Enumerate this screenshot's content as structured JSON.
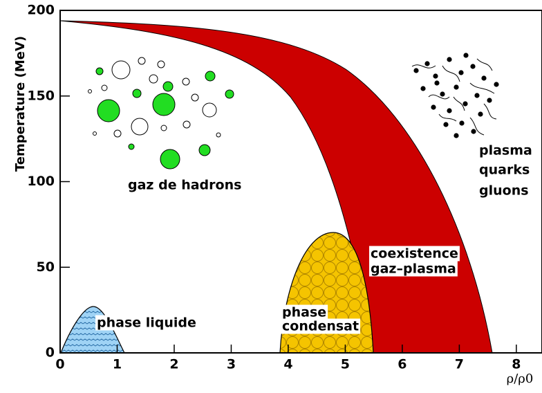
{
  "chart_data": {
    "type": "phase-diagram",
    "xlabel": "ρ/ρ0",
    "ylabel": "Temperature (MeV)",
    "xlim": [
      0,
      8.45
    ],
    "ylim": [
      0,
      200
    ],
    "xticks": [
      0,
      1,
      2,
      3,
      4,
      5,
      6,
      7,
      8
    ],
    "yticks": [
      0,
      50,
      100,
      150,
      200
    ],
    "annotations": [
      "gaz de hadrons",
      "phase liquide",
      "phase",
      "condensat",
      "coexistence",
      "gaz–plasma",
      "plasma",
      "quarks",
      "gluons"
    ]
  }
}
